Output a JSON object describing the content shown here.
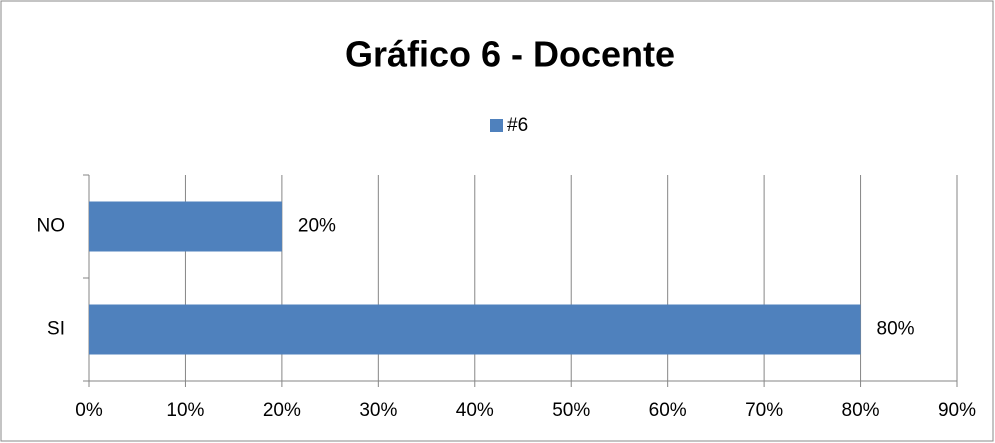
{
  "chart_data": {
    "type": "hbar",
    "title": "Gráfico 6 - Docente",
    "categories": [
      "NO",
      "SI"
    ],
    "series": [
      {
        "name": "#6",
        "color": "#4f81bd",
        "values": [
          20,
          80
        ],
        "value_labels": [
          "20%",
          "80%"
        ]
      }
    ],
    "xlim": [
      0,
      90
    ],
    "xticks": [
      {
        "value": 0,
        "label": "0%"
      },
      {
        "value": 10,
        "label": "10%"
      },
      {
        "value": 20,
        "label": "20%"
      },
      {
        "value": 30,
        "label": "30%"
      },
      {
        "value": 40,
        "label": "40%"
      },
      {
        "value": 50,
        "label": "50%"
      },
      {
        "value": 60,
        "label": "60%"
      },
      {
        "value": 70,
        "label": "70%"
      },
      {
        "value": 80,
        "label": "80%"
      },
      {
        "value": 90,
        "label": "90%"
      }
    ],
    "grid": true,
    "legend": "top"
  }
}
